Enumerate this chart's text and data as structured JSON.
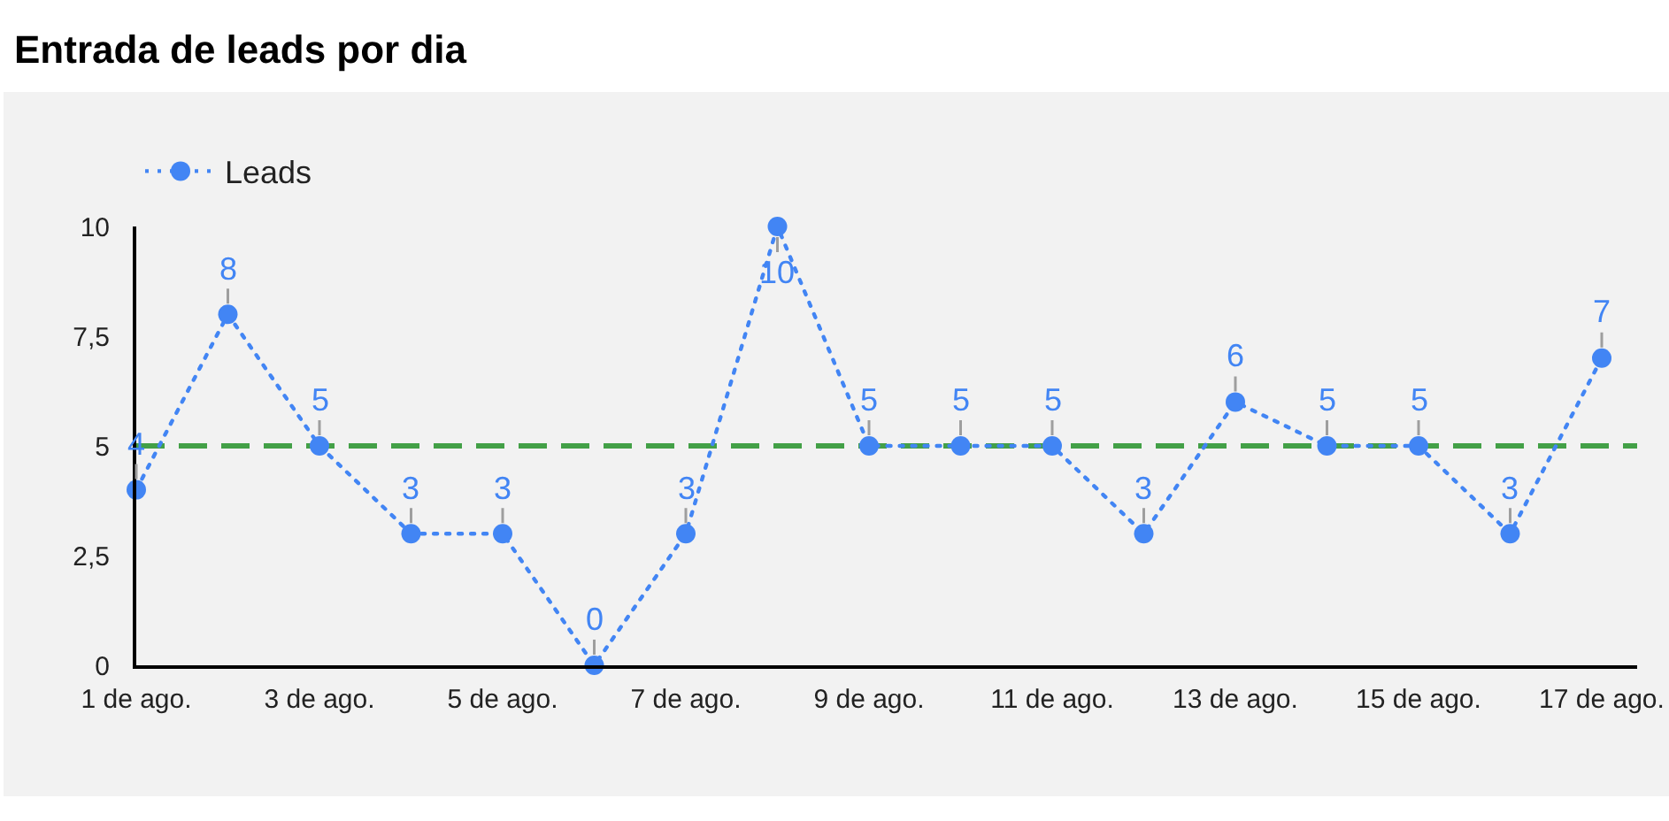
{
  "chart_data": {
    "type": "line",
    "title": "Entrada de leads por dia",
    "categories": [
      "1 de ago.",
      null,
      "3 de ago.",
      null,
      "5 de ago.",
      null,
      "7 de ago.",
      null,
      "9 de ago.",
      null,
      "11 de ago.",
      null,
      "13 de ago.",
      null,
      "15 de ago.",
      null,
      "17 de ago."
    ],
    "series": [
      {
        "name": "Leads",
        "color": "#4285f4",
        "values": [
          4,
          8,
          5,
          3,
          3,
          0,
          3,
          10,
          5,
          5,
          5,
          3,
          6,
          5,
          5,
          3,
          7
        ]
      }
    ],
    "ylim": [
      0,
      10
    ],
    "yticks": [
      0,
      {
        "value": 2.5,
        "label": "2,5"
      },
      5,
      {
        "value": 7.5,
        "label": "7,5"
      },
      10
    ],
    "ref_lines": [
      {
        "axis": "y",
        "value": 5,
        "color": "#43a047",
        "line_style": "dashed"
      }
    ],
    "data_labels": true,
    "legend": "top left",
    "grid": false,
    "marker": "circle",
    "line_style": "dotted"
  }
}
